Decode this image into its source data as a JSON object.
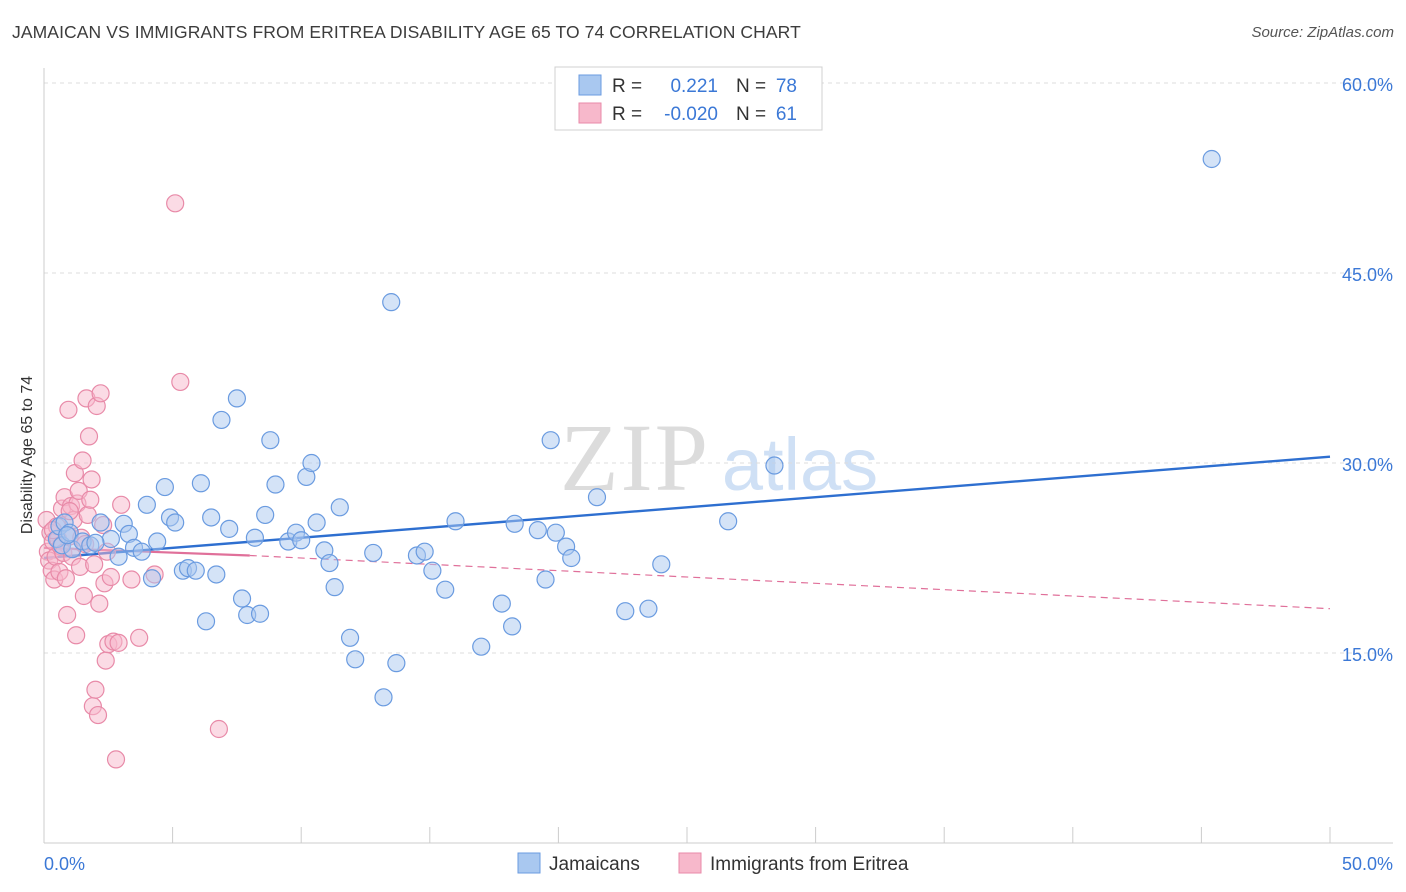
{
  "title": "JAMAICAN VS IMMIGRANTS FROM ERITREA DISABILITY AGE 65 TO 74 CORRELATION CHART",
  "source": "Source: ZipAtlas.com",
  "watermark": {
    "zip": "ZIP",
    "atlas": "atlas"
  },
  "colors": {
    "blue_fill": "#a9c8f0",
    "blue_stroke": "#6a9be0",
    "blue_line": "#2e6fd0",
    "pink_fill": "#f7b8cb",
    "pink_stroke": "#e88aa8",
    "pink_line": "#e0709a",
    "axis_text": "#3b78d6",
    "grid": "#dddddd"
  },
  "legend": {
    "r_label": "R =",
    "n_label": "N =",
    "rows": [
      {
        "series": "Jamaicans",
        "r": "0.221",
        "n": "78"
      },
      {
        "series": "Immigrants from Eritrea",
        "r": "-0.020",
        "n": "61"
      }
    ]
  },
  "chart_data": {
    "type": "scatter",
    "title": "JAMAICAN VS IMMIGRANTS FROM ERITREA DISABILITY AGE 65 TO 74 CORRELATION CHART",
    "xlabel": "",
    "ylabel": "Disability Age 65 to 74",
    "xlim": [
      0,
      50
    ],
    "ylim": [
      0,
      62
    ],
    "x_tick_labels": [
      "0.0%",
      "50.0%"
    ],
    "y_ticks": [
      15,
      30,
      45,
      60
    ],
    "y_tick_labels": [
      "15.0%",
      "30.0%",
      "45.0%",
      "60.0%"
    ],
    "series": [
      {
        "name": "Jamaicans",
        "r": 0.221,
        "n": 78,
        "trend": {
          "x": [
            0,
            50
          ],
          "y": [
            22.5,
            30.5
          ]
        },
        "points": [
          [
            0.5,
            24.0
          ],
          [
            0.6,
            25.0
          ],
          [
            0.7,
            23.5
          ],
          [
            0.8,
            25.3
          ],
          [
            1.0,
            24.5
          ],
          [
            1.1,
            23.2
          ],
          [
            1.5,
            23.8
          ],
          [
            1.8,
            23.5
          ],
          [
            2.2,
            25.3
          ],
          [
            2.6,
            24.0
          ],
          [
            2.9,
            22.6
          ],
          [
            3.1,
            25.2
          ],
          [
            3.3,
            24.4
          ],
          [
            3.5,
            23.3
          ],
          [
            3.8,
            23.0
          ],
          [
            4.0,
            26.7
          ],
          [
            4.2,
            20.9
          ],
          [
            4.4,
            23.8
          ],
          [
            4.7,
            28.1
          ],
          [
            4.9,
            25.7
          ],
          [
            5.1,
            25.3
          ],
          [
            5.4,
            21.5
          ],
          [
            5.6,
            21.7
          ],
          [
            5.9,
            21.5
          ],
          [
            6.1,
            28.4
          ],
          [
            6.3,
            17.5
          ],
          [
            6.5,
            25.7
          ],
          [
            6.7,
            21.2
          ],
          [
            6.9,
            33.4
          ],
          [
            7.2,
            24.8
          ],
          [
            7.5,
            35.1
          ],
          [
            7.7,
            19.3
          ],
          [
            7.9,
            18.0
          ],
          [
            8.2,
            24.1
          ],
          [
            8.4,
            18.1
          ],
          [
            8.6,
            25.9
          ],
          [
            8.8,
            31.8
          ],
          [
            9.0,
            28.3
          ],
          [
            9.5,
            23.8
          ],
          [
            9.8,
            24.5
          ],
          [
            10.0,
            23.9
          ],
          [
            10.2,
            28.9
          ],
          [
            10.4,
            30.0
          ],
          [
            10.6,
            25.3
          ],
          [
            10.9,
            23.1
          ],
          [
            11.1,
            22.1
          ],
          [
            11.3,
            20.2
          ],
          [
            11.5,
            26.5
          ],
          [
            11.9,
            16.2
          ],
          [
            12.1,
            14.5
          ],
          [
            12.8,
            22.9
          ],
          [
            13.2,
            11.5
          ],
          [
            13.5,
            42.7
          ],
          [
            13.7,
            14.2
          ],
          [
            14.5,
            22.7
          ],
          [
            14.8,
            23.0
          ],
          [
            15.1,
            21.5
          ],
          [
            15.6,
            20.0
          ],
          [
            16.0,
            25.4
          ],
          [
            17.0,
            15.5
          ],
          [
            17.8,
            18.9
          ],
          [
            18.2,
            17.1
          ],
          [
            18.3,
            25.2
          ],
          [
            19.2,
            24.7
          ],
          [
            19.5,
            20.8
          ],
          [
            19.7,
            31.8
          ],
          [
            19.9,
            24.5
          ],
          [
            20.3,
            23.4
          ],
          [
            20.5,
            22.5
          ],
          [
            21.5,
            27.3
          ],
          [
            22.6,
            18.3
          ],
          [
            23.5,
            18.5
          ],
          [
            24.0,
            22.0
          ],
          [
            26.6,
            25.4
          ],
          [
            28.4,
            29.8
          ],
          [
            45.4,
            54.0
          ],
          [
            0.9,
            24.3
          ],
          [
            2.0,
            23.7
          ]
        ]
      },
      {
        "name": "Immigrants from Eritrea",
        "r": -0.02,
        "n": 61,
        "trend": {
          "x": [
            0,
            8
          ],
          "y": [
            23.3,
            22.7
          ]
        },
        "trend_dashed": {
          "x": [
            8,
            50
          ],
          "y": [
            22.7,
            18.5
          ]
        },
        "points": [
          [
            0.1,
            25.5
          ],
          [
            0.15,
            23.0
          ],
          [
            0.2,
            22.3
          ],
          [
            0.25,
            24.5
          ],
          [
            0.3,
            21.5
          ],
          [
            0.35,
            23.8
          ],
          [
            0.4,
            20.8
          ],
          [
            0.45,
            22.6
          ],
          [
            0.5,
            25.0
          ],
          [
            0.55,
            24.0
          ],
          [
            0.6,
            21.4
          ],
          [
            0.65,
            23.4
          ],
          [
            0.7,
            26.4
          ],
          [
            0.75,
            22.9
          ],
          [
            0.8,
            27.3
          ],
          [
            0.85,
            20.9
          ],
          [
            0.9,
            18.0
          ],
          [
            0.95,
            34.2
          ],
          [
            1.0,
            24.2
          ],
          [
            1.05,
            26.6
          ],
          [
            1.1,
            22.6
          ],
          [
            1.15,
            25.5
          ],
          [
            1.2,
            29.2
          ],
          [
            1.25,
            16.4
          ],
          [
            1.3,
            26.8
          ],
          [
            1.35,
            27.8
          ],
          [
            1.4,
            21.8
          ],
          [
            1.45,
            24.1
          ],
          [
            1.5,
            30.2
          ],
          [
            1.55,
            19.5
          ],
          [
            1.6,
            23.6
          ],
          [
            1.65,
            35.1
          ],
          [
            1.7,
            25.9
          ],
          [
            1.75,
            32.1
          ],
          [
            1.8,
            27.1
          ],
          [
            1.85,
            28.7
          ],
          [
            1.9,
            10.8
          ],
          [
            1.95,
            22.0
          ],
          [
            2.0,
            12.1
          ],
          [
            2.05,
            34.5
          ],
          [
            2.1,
            10.1
          ],
          [
            2.15,
            18.9
          ],
          [
            2.2,
            35.5
          ],
          [
            2.3,
            25.1
          ],
          [
            2.35,
            20.5
          ],
          [
            2.4,
            14.4
          ],
          [
            2.45,
            23.0
          ],
          [
            2.5,
            15.7
          ],
          [
            2.6,
            21.0
          ],
          [
            2.7,
            15.9
          ],
          [
            2.8,
            6.6
          ],
          [
            2.9,
            15.8
          ],
          [
            3.0,
            26.7
          ],
          [
            3.4,
            20.8
          ],
          [
            3.7,
            16.2
          ],
          [
            4.3,
            21.2
          ],
          [
            5.1,
            50.5
          ],
          [
            5.3,
            36.4
          ],
          [
            6.8,
            9.0
          ],
          [
            0.35,
            24.7
          ],
          [
            1.0,
            26.2
          ]
        ]
      }
    ]
  },
  "bottom_legend": [
    "Jamaicans",
    "Immigrants from Eritrea"
  ]
}
